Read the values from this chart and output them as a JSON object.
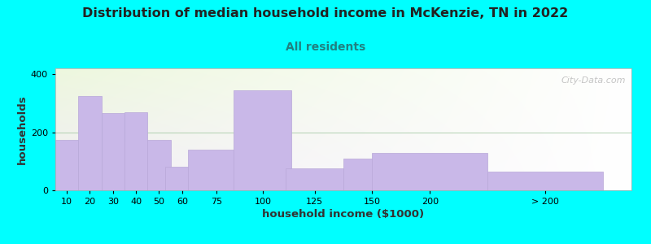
{
  "title": "Distribution of median household income in McKenzie, TN in 2022",
  "subtitle": "All residents",
  "xlabel": "household income ($1000)",
  "ylabel": "households",
  "bar_labels": [
    "10",
    "20",
    "30",
    "40",
    "50",
    "60",
    "75",
    "100",
    "125",
    "150",
    "200",
    "> 200"
  ],
  "bar_values": [
    175,
    325,
    265,
    270,
    175,
    80,
    140,
    345,
    75,
    110,
    130,
    65
  ],
  "bar_color": "#c9b8e8",
  "bar_edge_color": "#b8a8d8",
  "ylim": [
    0,
    420
  ],
  "yticks": [
    0,
    200,
    400
  ],
  "background_color": "#00ffff",
  "title_fontsize": 11.5,
  "subtitle_fontsize": 10,
  "subtitle_color": "#208080",
  "axis_label_fontsize": 9.5,
  "watermark_text": "City-Data.com",
  "bar_lefts": [
    5,
    15,
    25,
    35,
    45,
    55,
    70,
    90,
    112.5,
    137.5,
    162.5,
    212.5
  ],
  "bar_widths": [
    10,
    10,
    10,
    10,
    10,
    15,
    25,
    25,
    25,
    25,
    50,
    50
  ],
  "xlim": [
    0,
    250
  ]
}
